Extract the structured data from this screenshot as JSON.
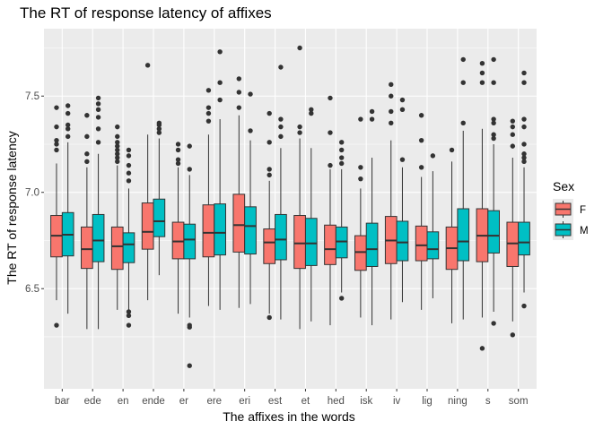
{
  "chart_data": {
    "type": "boxplot",
    "title": "The RT of response latency of affixes",
    "xlabel": "The affixes in the words",
    "ylabel": "The RT of response latency",
    "ylim": [
      5.98,
      7.85
    ],
    "yticks": [
      6.5,
      7.0,
      7.5
    ],
    "ytick_labels": [
      "6.5",
      "7.0",
      "7.5"
    ],
    "grid": true,
    "legend": {
      "title": "Sex",
      "position": "right",
      "entries": [
        "F",
        "M"
      ]
    },
    "colors": {
      "F": "#F8766D",
      "M": "#00BFC4",
      "panel": "#EBEBEB",
      "grid": "#FFFFFF",
      "outline": "#333333"
    },
    "categories": [
      "bar",
      "ede",
      "en",
      "ende",
      "er",
      "ere",
      "eri",
      "est",
      "et",
      "hed",
      "isk",
      "iv",
      "lig",
      "ning",
      "s",
      "som"
    ],
    "series": [
      {
        "name": "F",
        "boxes": [
          {
            "q1": 6.665,
            "median": 6.775,
            "q3": 6.88,
            "whisker_low": 6.44,
            "whisker_high": 7.15,
            "outliers": [
              6.31,
              7.22,
              7.25,
              7.27,
              7.34,
              7.44
            ]
          },
          {
            "q1": 6.605,
            "median": 6.705,
            "q3": 6.82,
            "whisker_low": 6.29,
            "whisker_high": 7.13,
            "outliers": [
              7.16,
              7.2,
              7.29,
              7.4
            ]
          },
          {
            "q1": 6.6,
            "median": 6.72,
            "q3": 6.82,
            "whisker_low": 6.39,
            "whisker_high": 7.14,
            "outliers": [
              7.16,
              7.18,
              7.2,
              7.22,
              7.24,
              7.26,
              7.29,
              7.34
            ]
          },
          {
            "q1": 6.705,
            "median": 6.795,
            "q3": 6.945,
            "whisker_low": 6.44,
            "whisker_high": 7.3,
            "outliers": [
              7.66
            ]
          },
          {
            "q1": 6.655,
            "median": 6.745,
            "q3": 6.845,
            "whisker_low": 6.37,
            "whisker_high": 7.13,
            "outliers": [
              7.15,
              7.17,
              7.22,
              7.25
            ]
          },
          {
            "q1": 6.665,
            "median": 6.79,
            "q3": 6.935,
            "whisker_low": 6.41,
            "whisker_high": 7.3,
            "outliers": [
              7.37,
              7.41,
              7.44,
              7.53
            ]
          },
          {
            "q1": 6.69,
            "median": 6.83,
            "q3": 6.99,
            "whisker_low": 6.4,
            "whisker_high": 7.4,
            "outliers": [
              7.44,
              7.52,
              7.59
            ]
          },
          {
            "q1": 6.63,
            "median": 6.74,
            "q3": 6.81,
            "whisker_low": 6.37,
            "whisker_high": 7.06,
            "outliers": [
              6.35,
              7.09,
              7.12,
              7.26,
              7.41
            ]
          },
          {
            "q1": 6.605,
            "median": 6.735,
            "q3": 6.88,
            "whisker_low": 6.29,
            "whisker_high": 7.28,
            "outliers": [
              7.31,
              7.34,
              7.75
            ]
          },
          {
            "q1": 6.625,
            "median": 6.705,
            "q3": 6.83,
            "whisker_low": 6.31,
            "whisker_high": 7.12,
            "outliers": [
              7.14,
              7.31,
              7.49
            ]
          },
          {
            "q1": 6.595,
            "median": 6.69,
            "q3": 6.775,
            "whisker_low": 6.35,
            "whisker_high": 7.02,
            "outliers": [
              7.07,
              7.13,
              7.38
            ]
          },
          {
            "q1": 6.63,
            "median": 6.75,
            "q3": 6.875,
            "whisker_low": 6.34,
            "whisker_high": 7.27,
            "outliers": [
              7.36,
              7.42,
              7.5,
              7.56
            ]
          },
          {
            "q1": 6.645,
            "median": 6.725,
            "q3": 6.825,
            "whisker_low": 6.39,
            "whisker_high": 7.08,
            "outliers": [
              7.13,
              7.27,
              7.4
            ]
          },
          {
            "q1": 6.6,
            "median": 6.71,
            "q3": 6.82,
            "whisker_low": 6.32,
            "whisker_high": 7.16,
            "outliers": [
              7.22
            ]
          },
          {
            "q1": 6.64,
            "median": 6.775,
            "q3": 6.915,
            "whisker_low": 6.35,
            "whisker_high": 7.33,
            "outliers": [
              6.19,
              7.57,
              7.62,
              7.67
            ]
          },
          {
            "q1": 6.615,
            "median": 6.735,
            "q3": 6.845,
            "whisker_low": 6.33,
            "whisker_high": 7.18,
            "outliers": [
              6.26,
              7.24,
              7.3,
              7.34,
              7.37
            ]
          }
        ]
      },
      {
        "name": "M",
        "boxes": [
          {
            "q1": 6.67,
            "median": 6.78,
            "q3": 6.895,
            "whisker_low": 6.37,
            "whisker_high": 7.26,
            "outliers": [
              7.29,
              7.33,
              7.35,
              7.41,
              7.45
            ]
          },
          {
            "q1": 6.64,
            "median": 6.75,
            "q3": 6.885,
            "whisker_low": 6.29,
            "whisker_high": 7.2,
            "outliers": [
              7.26,
              7.33,
              7.39,
              7.43,
              7.46,
              7.49
            ]
          },
          {
            "q1": 6.635,
            "median": 6.73,
            "q3": 6.79,
            "whisker_low": 6.39,
            "whisker_high": 7.02,
            "outliers": [
              6.31,
              6.36,
              6.38,
              7.06,
              7.1,
              7.14,
              7.19,
              7.22
            ]
          },
          {
            "q1": 6.77,
            "median": 6.85,
            "q3": 6.965,
            "whisker_low": 6.57,
            "whisker_high": 7.28,
            "outliers": [
              7.31,
              7.33,
              7.35,
              7.36
            ]
          },
          {
            "q1": 6.655,
            "median": 6.755,
            "q3": 6.835,
            "whisker_low": 6.35,
            "whisker_high": 7.09,
            "outliers": [
              6.1,
              6.3,
              6.31,
              7.12,
              7.24
            ]
          },
          {
            "q1": 6.675,
            "median": 6.79,
            "q3": 6.94,
            "whisker_low": 6.39,
            "whisker_high": 7.38,
            "outliers": [
              7.48,
              7.57,
              7.73
            ]
          },
          {
            "q1": 6.68,
            "median": 6.825,
            "q3": 6.925,
            "whisker_low": 6.42,
            "whisker_high": 7.27,
            "outliers": [
              7.32,
              7.51
            ]
          },
          {
            "q1": 6.65,
            "median": 6.755,
            "q3": 6.885,
            "whisker_low": 6.34,
            "whisker_high": 7.23,
            "outliers": [
              7.29,
              7.34,
              7.38,
              7.65
            ]
          },
          {
            "q1": 6.62,
            "median": 6.735,
            "q3": 6.865,
            "whisker_low": 6.33,
            "whisker_high": 7.23,
            "outliers": [
              7.41,
              7.43
            ]
          },
          {
            "q1": 6.66,
            "median": 6.745,
            "q3": 6.82,
            "whisker_low": 6.48,
            "whisker_high": 7.12,
            "outliers": [
              6.45,
              7.15,
              7.18,
              7.22,
              7.26
            ]
          },
          {
            "q1": 6.615,
            "median": 6.705,
            "q3": 6.84,
            "whisker_low": 6.31,
            "whisker_high": 7.18,
            "outliers": [
              7.38,
              7.42
            ]
          },
          {
            "q1": 6.645,
            "median": 6.74,
            "q3": 6.85,
            "whisker_low": 6.43,
            "whisker_high": 7.13,
            "outliers": [
              7.17,
              7.43,
              7.48
            ]
          },
          {
            "q1": 6.655,
            "median": 6.705,
            "q3": 6.795,
            "whisker_low": 6.45,
            "whisker_high": 7.11,
            "outliers": [
              7.19
            ]
          },
          {
            "q1": 6.645,
            "median": 6.745,
            "q3": 6.915,
            "whisker_low": 6.34,
            "whisker_high": 7.32,
            "outliers": [
              7.36,
              7.57,
              7.69
            ]
          },
          {
            "q1": 6.685,
            "median": 6.775,
            "q3": 6.905,
            "whisker_low": 6.38,
            "whisker_high": 7.25,
            "outliers": [
              6.32,
              7.28,
              7.3,
              7.36,
              7.38,
              7.57,
              7.69
            ]
          },
          {
            "q1": 6.675,
            "median": 6.74,
            "q3": 6.845,
            "whisker_low": 6.48,
            "whisker_high": 7.13,
            "outliers": [
              6.41,
              7.16,
              7.18,
              7.2,
              7.25,
              7.34,
              7.38,
              7.57,
              7.62
            ]
          }
        ]
      }
    ]
  }
}
